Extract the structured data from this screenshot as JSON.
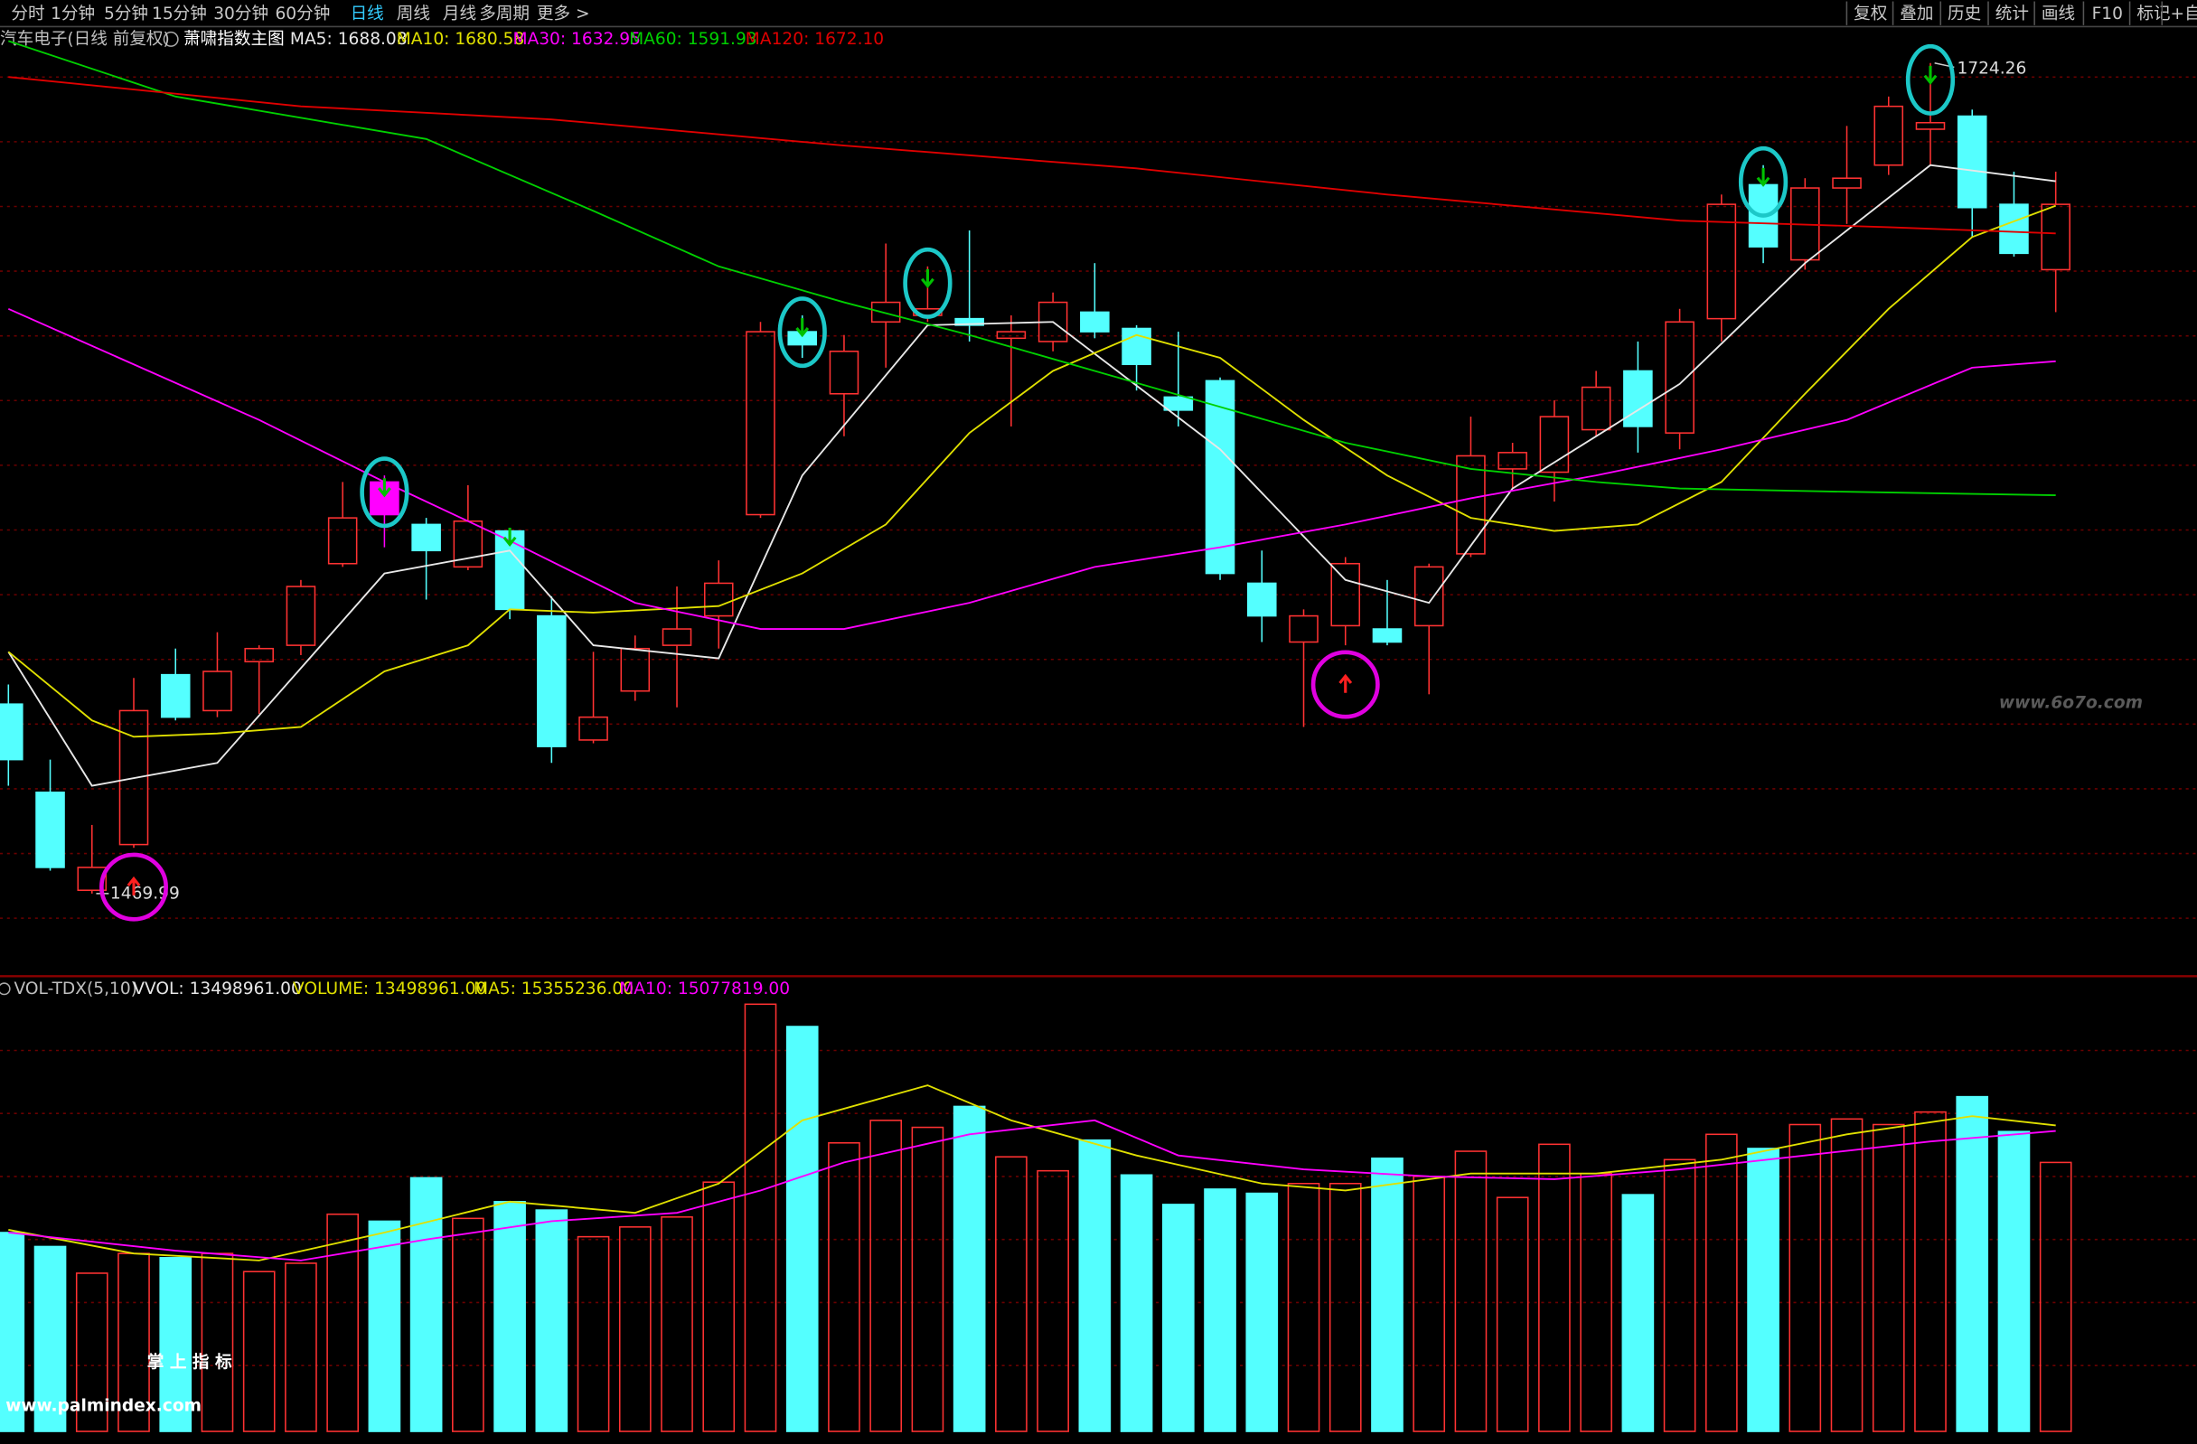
{
  "toolbar": {
    "periods": [
      "分时",
      "1分钟",
      "5分钟",
      "15分钟",
      "30分钟",
      "60分钟",
      "日线",
      "周线",
      "月线",
      "多周期",
      "更多 >"
    ],
    "active": 6,
    "tools": [
      "复权",
      "叠加",
      "历史",
      "统计",
      "画线",
      "F10",
      "标记",
      "+自"
    ]
  },
  "chart_data": {
    "type": "candlestick",
    "title": "汽车电子(日线 前复权)",
    "indicator": "萧啸指数主图",
    "open": [
      1528,
      1501,
      1471,
      1485,
      1537,
      1526,
      1541,
      1546,
      1571,
      1596,
      1583,
      1570,
      1581,
      1555,
      1517,
      1532,
      1546,
      1555,
      1586,
      1642,
      1623,
      1645,
      1647,
      1646,
      1640,
      1639,
      1648,
      1643,
      1622,
      1627,
      1565,
      1547,
      1552,
      1551,
      1552,
      1574,
      1600,
      1599,
      1612,
      1630,
      1611,
      1646,
      1687,
      1664,
      1686,
      1693,
      1704,
      1708,
      1681,
      1661
    ],
    "high": [
      1534,
      1511,
      1491,
      1536,
      1545,
      1550,
      1546,
      1566,
      1596,
      1598,
      1585,
      1595,
      1582,
      1561,
      1544,
      1549,
      1564,
      1572,
      1645,
      1647,
      1641,
      1669,
      1662,
      1673,
      1647,
      1654,
      1663,
      1644,
      1642,
      1628,
      1575,
      1557,
      1573,
      1566,
      1571,
      1616,
      1608,
      1621,
      1630,
      1639,
      1649,
      1684,
      1693,
      1689,
      1705,
      1714,
      1724.26,
      1710,
      1691,
      1691
    ],
    "low": [
      1503,
      1477,
      1469.99,
      1484,
      1523,
      1524,
      1525,
      1543,
      1570,
      1576,
      1560,
      1569,
      1554,
      1510,
      1516,
      1529,
      1527,
      1545,
      1585,
      1634,
      1610,
      1631,
      1645,
      1639,
      1613,
      1636,
      1640,
      1624,
      1613,
      1566,
      1547,
      1521,
      1546,
      1546,
      1531,
      1573,
      1594,
      1590,
      1610,
      1605,
      1606,
      1639,
      1663,
      1661,
      1675,
      1690,
      1693,
      1671,
      1665,
      1648
    ],
    "close": [
      1511,
      1478,
      1478,
      1526,
      1524,
      1538,
      1545,
      1564,
      1585,
      1586,
      1575,
      1584,
      1557,
      1515,
      1524,
      1545,
      1551,
      1565,
      1642,
      1638,
      1636,
      1651,
      1649,
      1644,
      1642,
      1651,
      1642,
      1632,
      1618,
      1568,
      1555,
      1555,
      1571,
      1547,
      1570,
      1604,
      1605,
      1616,
      1625,
      1613,
      1645,
      1681,
      1668,
      1686,
      1689,
      1711,
      1706,
      1680,
      1666,
      1681
    ],
    "up_color": "#ff3232",
    "down_color": "#54ffff",
    "highlight": {
      "index": 9,
      "color": "#ff00ff"
    },
    "ma_lines": [
      {
        "name": "MA5",
        "label": "MA5: 1688.08",
        "color": "#e8e8e8",
        "x": [
          0,
          2,
          5,
          9,
          12,
          14,
          17,
          19,
          22,
          25,
          29,
          32,
          34,
          36,
          40,
          43,
          46,
          49
        ],
        "values": [
          1544,
          1503,
          1510,
          1568,
          1575,
          1546,
          1542,
          1598,
          1644,
          1645,
          1606,
          1566,
          1559,
          1594,
          1626,
          1663,
          1693,
          1688.08
        ]
      },
      {
        "name": "MA10",
        "label": "MA10: 1680.58",
        "color": "#e0e000",
        "x": [
          0,
          2,
          3,
          5,
          7,
          9,
          11,
          12,
          14,
          17,
          19,
          21,
          23,
          25,
          27,
          29,
          31,
          33,
          35,
          37,
          39,
          41,
          43,
          45,
          47,
          49
        ],
        "values": [
          1544,
          1523,
          1518,
          1519,
          1521,
          1538,
          1546,
          1557,
          1556,
          1558,
          1568,
          1583,
          1611,
          1630,
          1641,
          1634,
          1615,
          1598,
          1585,
          1581,
          1583,
          1596,
          1623,
          1649,
          1671,
          1680.58
        ]
      },
      {
        "name": "MA30",
        "label": "MA30: 1632.95",
        "color": "#ff00ff",
        "x": [
          0,
          3,
          6,
          9,
          12,
          15,
          18,
          20,
          23,
          26,
          29,
          32,
          35,
          38,
          41,
          44,
          47,
          49
        ],
        "values": [
          1649,
          1632,
          1615,
          1596,
          1578,
          1559,
          1551,
          1551,
          1559,
          1570,
          1576,
          1583,
          1591,
          1598,
          1606,
          1615,
          1631,
          1632.95
        ]
      },
      {
        "name": "MA60",
        "label": "MA60: 1591.93",
        "color": "#00d000",
        "x": [
          0,
          4,
          10,
          14,
          17,
          20,
          23,
          26,
          29,
          32,
          35,
          38,
          40,
          44,
          49
        ],
        "values": [
          1731,
          1714,
          1701,
          1679,
          1662,
          1651,
          1641,
          1630,
          1619,
          1608,
          1600,
          1596,
          1594,
          1593,
          1591.93
        ]
      },
      {
        "name": "MA120",
        "label": "MA120: 1672.10",
        "color": "#e00000",
        "x": [
          0,
          7,
          13,
          20,
          27,
          33,
          40,
          45,
          49
        ],
        "values": [
          1720,
          1711,
          1707,
          1699,
          1692,
          1684,
          1676,
          1674,
          1672.1
        ]
      }
    ],
    "sell_signals": [
      9,
      19,
      22,
      42,
      46
    ],
    "sell_arrows": [
      12
    ],
    "buy_signals": [
      3,
      32
    ],
    "volume": {
      "labels": [
        {
          "text": "VOL-TDX(5,10)",
          "color": "#c0c0c0"
        },
        {
          "text": "VVOL: 13498961.00",
          "color": "#e8e8e8"
        },
        {
          "text": "VOLUME: 13498961.00",
          "color": "#e0e000"
        },
        {
          "text": "MA5: 15355236.00",
          "color": "#e0e000"
        },
        {
          "text": "MA10: 15077819.00",
          "color": "#ff00ff"
        }
      ],
      "values": [
        9980000,
        9280000,
        7940000,
        8930000,
        8720000,
        8930000,
        8020000,
        8440000,
        10900000,
        10550000,
        12730000,
        10690000,
        11530000,
        11110000,
        9770000,
        10260000,
        10760000,
        12510000,
        21440000,
        20320000,
        14480000,
        15610000,
        15260000,
        16310000,
        13780000,
        13080000,
        14620000,
        12870000,
        11390000,
        12160000,
        11950000,
        12440000,
        12440000,
        13710000,
        12800000,
        14060000,
        11740000,
        14410000,
        12940000,
        11880000,
        13640000,
        14910000,
        14200000,
        15400000,
        15680000,
        15400000,
        16030000,
        16800000,
        15050000,
        13498961
      ],
      "ma_lines": [
        {
          "name": "MA5",
          "color": "#e0e000",
          "x": [
            0,
            3,
            6,
            9,
            12,
            15,
            17,
            19,
            22,
            24,
            27,
            30,
            32,
            35,
            38,
            41,
            44,
            47,
            49
          ],
          "values": [
            10120000,
            8930000,
            8580000,
            9980000,
            11530000,
            10970000,
            12440000,
            15610000,
            17370000,
            15610000,
            13850000,
            12440000,
            12090000,
            12940000,
            12940000,
            13640000,
            14910000,
            15820000,
            15355236
          ]
        },
        {
          "name": "MA10",
          "color": "#ff00ff",
          "x": [
            0,
            4,
            7,
            10,
            13,
            16,
            18,
            20,
            23,
            26,
            28,
            31,
            34,
            37,
            40,
            43,
            46,
            49
          ],
          "values": [
            9980000,
            9070000,
            8580000,
            9630000,
            10550000,
            10970000,
            12090000,
            13500000,
            14910000,
            15610000,
            13850000,
            13150000,
            12800000,
            12660000,
            13150000,
            13850000,
            14550000,
            15077819
          ]
        }
      ]
    }
  },
  "watermarks": {
    "site": "www.6o7o.com",
    "brand": "掌 上 指 标",
    "url": "www.palmindex.com"
  }
}
